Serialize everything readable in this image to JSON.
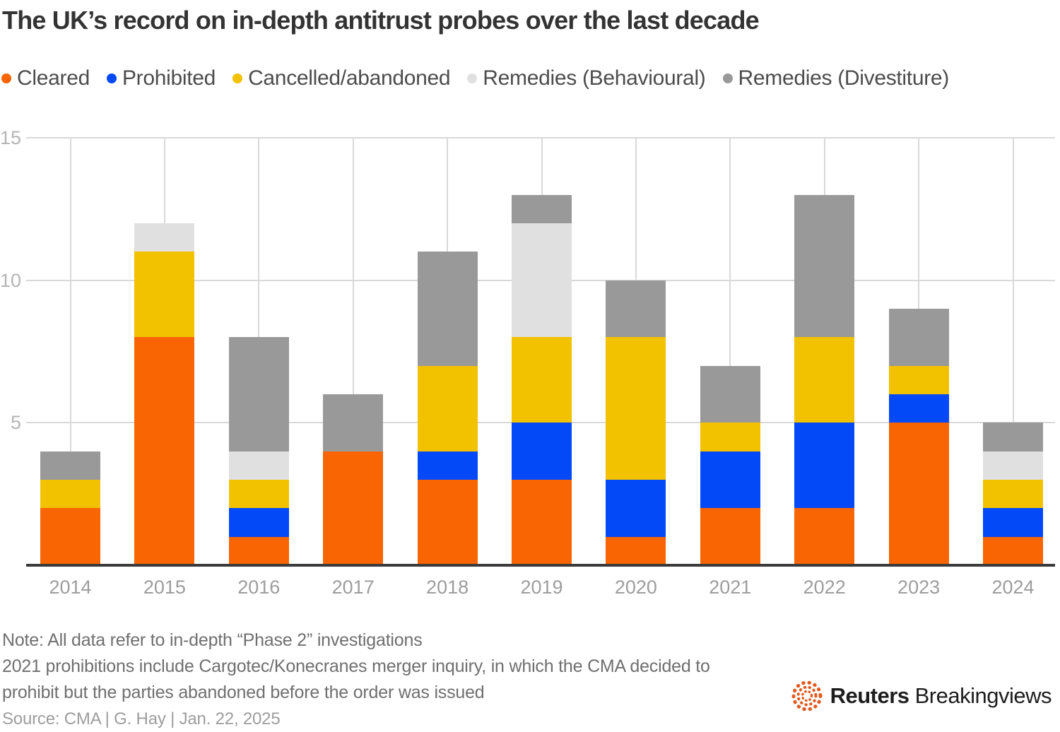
{
  "title": "The UK’s record on in-depth antitrust probes over the last decade",
  "legend": [
    {
      "label": "Cleared",
      "color": "#f96502"
    },
    {
      "label": "Prohibited",
      "color": "#0449f8"
    },
    {
      "label": "Cancelled/abandoned",
      "color": "#f2c100"
    },
    {
      "label": "Remedies (Behavioural)",
      "color": "#e0e0e0"
    },
    {
      "label": "Remedies (Divestiture)",
      "color": "#999999"
    }
  ],
  "chart_data": {
    "type": "bar",
    "stacked": true,
    "title": "The UK’s record on in-depth antitrust probes over the last decade",
    "categories": [
      "2014",
      "2015",
      "2016",
      "2017",
      "2018",
      "2019",
      "2020",
      "2021",
      "2022",
      "2023",
      "2024"
    ],
    "series": [
      {
        "name": "Cleared",
        "color": "#f96502",
        "values": [
          2,
          8,
          1,
          4,
          3,
          3,
          1,
          2,
          2,
          5,
          1
        ]
      },
      {
        "name": "Prohibited",
        "color": "#0449f8",
        "values": [
          0,
          0,
          1,
          0,
          1,
          2,
          2,
          2,
          3,
          1,
          1
        ]
      },
      {
        "name": "Cancelled/abandoned",
        "color": "#f2c100",
        "values": [
          1,
          3,
          1,
          0,
          3,
          3,
          5,
          1,
          3,
          1,
          1
        ]
      },
      {
        "name": "Remedies (Behavioural)",
        "color": "#e0e0e0",
        "values": [
          0,
          1,
          1,
          0,
          0,
          4,
          0,
          0,
          0,
          0,
          1
        ]
      },
      {
        "name": "Remedies (Divestiture)",
        "color": "#999999",
        "values": [
          1,
          0,
          4,
          2,
          4,
          1,
          2,
          2,
          5,
          2,
          1
        ]
      }
    ],
    "totals": [
      4,
      12,
      8,
      6,
      11,
      13,
      10,
      7,
      13,
      9,
      5
    ],
    "xlabel": "",
    "ylabel": "",
    "ylim": [
      0,
      15
    ],
    "yticks": [
      5,
      10,
      15
    ],
    "grid": "on",
    "legend_position": "top"
  },
  "notes": {
    "line1": "Note: All data refer to in-depth “Phase 2” investigations",
    "line2": "2021 prohibitions include Cargotec/Konecranes merger inquiry, in which the CMA decided to",
    "line3": "prohibit but the parties abandoned before the order was issued"
  },
  "source": "Source: CMA | G. Hay | Jan. 22, 2025",
  "logo": {
    "brand": "Reuters",
    "suffix": "Breakingviews",
    "orb_color": "#e4581c"
  }
}
